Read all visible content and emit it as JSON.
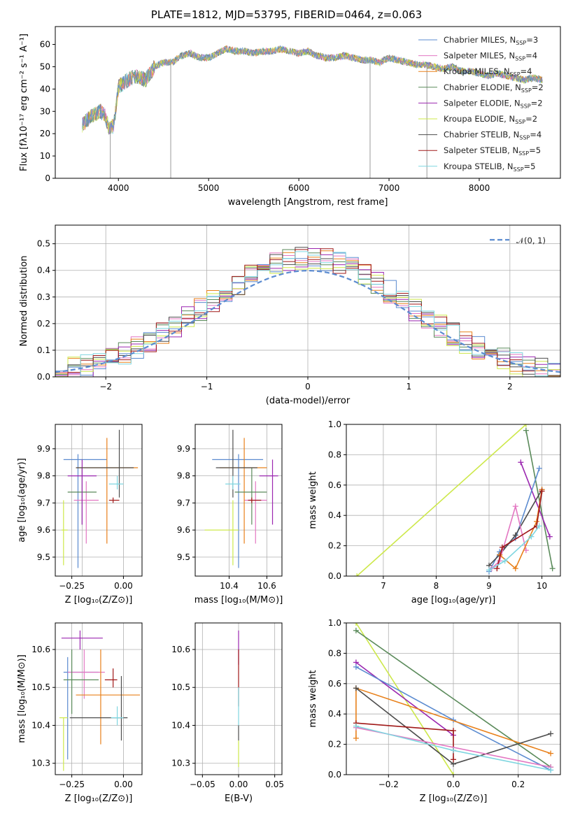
{
  "title": "PLATE=1812, MJD=53795, FIBERID=0464, z=0.063",
  "colors": {
    "chabrier_miles": "#5b8bd0",
    "salpeter_miles": "#e377c2",
    "kroupa_miles": "#e8801a",
    "chabrier_elodie": "#5a8a5a",
    "salpeter_elodie": "#9b27b0",
    "kroupa_elodie": "#cde84a",
    "chabrier_stelib": "#4d4d4d",
    "salpeter_stelib": "#a01818",
    "kroupa_stelib": "#7fd6e0",
    "gauss": "#5b8bd0",
    "grid": "#b0b0b0"
  },
  "chart_data": [
    {
      "type": "line",
      "xlabel": "wavelength [Angstrom, rest frame]",
      "ylabel": "Flux [fλ10⁻¹⁷ erg cm⁻² s⁻¹ A⁻¹]",
      "xlim": [
        3300,
        8900
      ],
      "ylim": [
        0,
        68
      ],
      "xticks": [
        "4000",
        "5000",
        "6000",
        "7000",
        "8000"
      ],
      "yticks": [
        "0",
        "10",
        "20",
        "30",
        "40",
        "50",
        "60"
      ],
      "grid": false,
      "legend_position": "top-right",
      "legend": [
        "Chabrier MILES, N_SSP=3",
        "Salpeter MILES, N_SSP=4",
        "Kroupa MILES, N_SSP=4",
        "Chabrier ELODIE, N_SSP=2",
        "Salpeter ELODIE, N_SSP=2",
        "Kroupa ELODIE, N_SSP=2",
        "Chabrier STELIB, N_SSP=4",
        "Salpeter STELIB, N_SSP=5",
        "Kroupa STELIB, N_SSP=5"
      ],
      "spectrum_envelope": {
        "x": [
          3600,
          3700,
          3800,
          3850,
          3900,
          3950,
          4000,
          4100,
          4200,
          4300,
          4400,
          4500,
          4600,
          4700,
          4800,
          4900,
          5000,
          5100,
          5200,
          5300,
          5400,
          5500,
          5600,
          5700,
          5800,
          5900,
          6000,
          6100,
          6200,
          6300,
          6400,
          6500,
          6600,
          6700,
          6800,
          6900,
          7000,
          7100,
          7200,
          7300,
          7400,
          7500,
          7600,
          7700,
          7800,
          7900,
          8000,
          8100,
          8200,
          8300,
          8400,
          8500,
          8600,
          8700
        ],
        "y": [
          24,
          28,
          30,
          28,
          22,
          24,
          41,
          44,
          46,
          44,
          50,
          52,
          52,
          55,
          56,
          54,
          54,
          56,
          58,
          57,
          57,
          56,
          57,
          57,
          58,
          57,
          56,
          57,
          55,
          54,
          54,
          55,
          54,
          53,
          53,
          52,
          54,
          53,
          52,
          51,
          51,
          50,
          49,
          50,
          48,
          48,
          47,
          46,
          47,
          46,
          45,
          44,
          45,
          44
        ]
      },
      "dips": [
        {
          "x": 3910,
          "y": 0
        },
        {
          "x": 4580,
          "y": 0
        },
        {
          "x": 6790,
          "y": 0
        },
        {
          "x": 7420,
          "y": 0
        }
      ]
    },
    {
      "type": "histogram",
      "xlabel": "(data-model)/error",
      "ylabel": "Normed distribution",
      "xlim": [
        -2.5,
        2.5
      ],
      "ylim": [
        0,
        0.57
      ],
      "xticks": [
        "−2",
        "−1",
        "0",
        "1",
        "2"
      ],
      "yticks": [
        "0.0",
        "0.1",
        "0.2",
        "0.3",
        "0.4",
        "0.5"
      ],
      "grid": true,
      "legend_position": "top-right",
      "legend": [
        "𝒩(0, 1)"
      ]
    },
    {
      "type": "scatter",
      "xlabel": "Z [log₁₀(Z/Z⊙)]",
      "ylabel": "age  [log₁₀(age/yr)]",
      "xlim": [
        -0.33,
        0.09
      ],
      "ylim": [
        9.43,
        9.99
      ],
      "xticks": [
        "−0.25",
        "0.00"
      ],
      "xticks_minor": [
        "−0.2"
      ],
      "yticks": [
        "9.5",
        "9.6",
        "9.7",
        "9.8",
        "9.9"
      ],
      "grid": true,
      "points": [
        {
          "series": "chabrier_miles",
          "x": -0.22,
          "y": 9.86,
          "ex": [
            -0.29,
            -0.08
          ],
          "ey": [
            9.46,
            9.88
          ]
        },
        {
          "series": "salpeter_miles",
          "x": -0.18,
          "y": 9.71,
          "ex": [
            -0.24,
            -0.12
          ],
          "ey": [
            9.55,
            9.78
          ]
        },
        {
          "series": "kroupa_miles",
          "x": -0.08,
          "y": 9.83,
          "ex": [
            -0.23,
            0.07
          ],
          "ey": [
            9.55,
            9.94
          ]
        },
        {
          "series": "chabrier_elodie",
          "x": -0.2,
          "y": 9.74,
          "ex": [
            -0.27,
            -0.13
          ],
          "ey": [
            9.62,
            9.83
          ]
        },
        {
          "series": "salpeter_elodie",
          "x": -0.2,
          "y": 9.8,
          "ex": [
            -0.27,
            -0.13
          ],
          "ey": [
            9.62,
            9.86
          ]
        },
        {
          "series": "kroupa_elodie",
          "x": -0.29,
          "y": 9.6,
          "ex": [
            -0.3,
            -0.27
          ],
          "ey": [
            9.47,
            9.71
          ]
        },
        {
          "series": "chabrier_stelib",
          "x": -0.02,
          "y": 9.83,
          "ex": [
            -0.23,
            0.05
          ],
          "ey": [
            9.72,
            9.97
          ]
        },
        {
          "series": "salpeter_stelib",
          "x": -0.05,
          "y": 9.71,
          "ex": [
            -0.07,
            -0.02
          ],
          "ey": [
            9.7,
            9.72
          ]
        },
        {
          "series": "kroupa_stelib",
          "x": -0.03,
          "y": 9.77,
          "ex": [
            -0.07,
            0.0
          ],
          "ey": [
            9.75,
            9.8
          ]
        }
      ]
    },
    {
      "type": "scatter",
      "xlabel": "mass [log₁₀(M/M⊙)]",
      "ylabel": "",
      "xlim": [
        10.22,
        10.68
      ],
      "ylim": [
        9.43,
        9.99
      ],
      "xticks": [
        "10.4",
        "10.6"
      ],
      "yticks": [
        "9.5",
        "9.6",
        "9.7",
        "9.8",
        "9.9"
      ],
      "grid": true,
      "points": [
        {
          "series": "chabrier_miles",
          "x": 10.45,
          "y": 9.86,
          "ex": [
            10.31,
            10.58
          ],
          "ey": [
            9.46,
            9.88
          ]
        },
        {
          "series": "salpeter_miles",
          "x": 10.54,
          "y": 9.71,
          "ex": [
            10.48,
            10.6
          ],
          "ey": [
            9.55,
            9.78
          ]
        },
        {
          "series": "kroupa_miles",
          "x": 10.48,
          "y": 9.83,
          "ex": [
            10.35,
            10.6
          ],
          "ey": [
            9.55,
            9.94
          ]
        },
        {
          "series": "chabrier_elodie",
          "x": 10.52,
          "y": 9.74,
          "ex": [
            10.43,
            10.6
          ],
          "ey": [
            9.62,
            9.83
          ]
        },
        {
          "series": "salpeter_elodie",
          "x": 10.63,
          "y": 9.8,
          "ex": [
            10.56,
            10.66
          ],
          "ey": [
            9.62,
            9.86
          ]
        },
        {
          "series": "kroupa_elodie",
          "x": 10.42,
          "y": 9.6,
          "ex": [
            10.27,
            10.45
          ],
          "ey": [
            9.47,
            9.71
          ]
        },
        {
          "series": "chabrier_stelib",
          "x": 10.42,
          "y": 9.83,
          "ex": [
            10.33,
            10.55
          ],
          "ey": [
            9.72,
            9.97
          ]
        },
        {
          "series": "salpeter_stelib",
          "x": 10.52,
          "y": 9.71,
          "ex": [
            10.5,
            10.57
          ],
          "ey": [
            9.7,
            9.72
          ]
        },
        {
          "series": "kroupa_stelib",
          "x": 10.42,
          "y": 9.77,
          "ex": [
            10.38,
            10.46
          ],
          "ey": [
            9.75,
            9.8
          ]
        }
      ]
    },
    {
      "type": "line",
      "xlabel": "age  [log₁₀(age/yr)]",
      "ylabel": "mass weight",
      "xlim": [
        6.3,
        10.35
      ],
      "ylim": [
        0,
        1.0
      ],
      "xticks": [
        "7",
        "8",
        "9",
        "10"
      ],
      "yticks": [
        "0.0",
        "0.2",
        "0.4",
        "0.6",
        "0.8",
        "1.0"
      ],
      "grid": true,
      "series": [
        {
          "name": "kroupa_elodie",
          "x": [
            6.5,
            9.7
          ],
          "y": [
            0.0,
            1.0
          ]
        },
        {
          "name": "chabrier_elodie",
          "x": [
            9.7,
            10.2
          ],
          "y": [
            0.96,
            0.05
          ]
        },
        {
          "name": "salpeter_elodie",
          "x": [
            9.6,
            10.15
          ],
          "y": [
            0.75,
            0.26
          ]
        },
        {
          "name": "chabrier_miles",
          "x": [
            9.0,
            9.2,
            9.5,
            9.95
          ],
          "y": [
            0.03,
            0.16,
            0.25,
            0.71
          ]
        },
        {
          "name": "chabrier_stelib",
          "x": [
            9.0,
            9.2,
            9.5,
            10.0
          ],
          "y": [
            0.07,
            0.14,
            0.27,
            0.57
          ]
        },
        {
          "name": "salpeter_miles",
          "x": [
            9.05,
            9.2,
            9.5,
            9.7
          ],
          "y": [
            0.05,
            0.1,
            0.46,
            0.17
          ]
        },
        {
          "name": "kroupa_miles",
          "x": [
            9.2,
            9.5,
            9.9,
            10.0
          ],
          "y": [
            0.14,
            0.05,
            0.36,
            0.57
          ]
        },
        {
          "name": "salpeter_stelib",
          "x": [
            9.15,
            9.25,
            9.9,
            10.0
          ],
          "y": [
            0.05,
            0.19,
            0.33,
            0.56
          ]
        },
        {
          "name": "kroupa_stelib",
          "x": [
            9.0,
            9.3,
            9.8,
            9.95
          ],
          "y": [
            0.04,
            0.1,
            0.26,
            0.33
          ]
        }
      ]
    },
    {
      "type": "scatter",
      "xlabel": "Z [log₁₀(Z/Z⊙)]",
      "ylabel": "mass [log₁₀(M/M⊙)]",
      "xlim": [
        -0.33,
        0.09
      ],
      "ylim": [
        10.27,
        10.67
      ],
      "xticks": [
        "−0.25",
        "0.00"
      ],
      "xticks_minor": [
        "−0.2"
      ],
      "yticks": [
        "10.3",
        "10.4",
        "10.5",
        "10.6"
      ],
      "grid": true,
      "points": [
        {
          "series": "chabrier_miles",
          "x": -0.27,
          "y": 10.54,
          "ex": [
            -0.29,
            -0.12
          ],
          "ey": [
            10.31,
            10.58
          ]
        },
        {
          "series": "salpeter_miles",
          "x": -0.19,
          "y": 10.54,
          "ex": [
            -0.27,
            -0.09
          ],
          "ey": [
            10.47,
            10.6
          ]
        },
        {
          "series": "kroupa_miles",
          "x": -0.11,
          "y": 10.48,
          "ex": [
            -0.23,
            0.08
          ],
          "ey": [
            10.35,
            10.6
          ]
        },
        {
          "series": "chabrier_elodie",
          "x": -0.25,
          "y": 10.52,
          "ex": [
            -0.29,
            -0.12
          ],
          "ey": [
            10.43,
            10.6
          ]
        },
        {
          "series": "salpeter_elodie",
          "x": -0.21,
          "y": 10.63,
          "ex": [
            -0.3,
            -0.1
          ],
          "ey": [
            10.6,
            10.65
          ]
        },
        {
          "series": "kroupa_elodie",
          "x": -0.29,
          "y": 10.42,
          "ex": [
            -0.31,
            -0.27
          ],
          "ey": [
            10.28,
            10.42
          ]
        },
        {
          "series": "chabrier_stelib",
          "x": -0.01,
          "y": 10.42,
          "ex": [
            -0.26,
            0.02
          ],
          "ey": [
            10.36,
            10.53
          ]
        },
        {
          "series": "salpeter_stelib",
          "x": -0.05,
          "y": 10.52,
          "ex": [
            -0.09,
            -0.03
          ],
          "ey": [
            10.5,
            10.55
          ]
        },
        {
          "series": "kroupa_stelib",
          "x": -0.03,
          "y": 10.42,
          "ex": [
            -0.06,
            0.0
          ],
          "ey": [
            10.4,
            10.45
          ]
        }
      ]
    },
    {
      "type": "scatter",
      "xlabel": "E(B-V)",
      "ylabel": "",
      "xlim": [
        -0.06,
        0.06
      ],
      "ylim": [
        10.27,
        10.67
      ],
      "xticks": [
        "−0.05",
        "0.00",
        "0.05"
      ],
      "yticks": [
        "10.3",
        "10.4",
        "10.5",
        "10.6"
      ],
      "grid": true,
      "points": [
        {
          "series": "salpeter_elodie",
          "x": 0.0,
          "y": 10.6,
          "ey": [
            10.56,
            10.65
          ]
        },
        {
          "series": "salpeter_stelib",
          "x": 0.0,
          "y": 10.52,
          "ey": [
            10.45,
            10.6
          ]
        },
        {
          "series": "chabrier_stelib",
          "x": 0.0,
          "y": 10.38,
          "ey": [
            10.36,
            10.4
          ]
        },
        {
          "series": "kroupa_stelib",
          "x": 0.0,
          "y": 10.45,
          "ey": [
            10.4,
            10.5
          ]
        },
        {
          "series": "kroupa_elodie",
          "x": 0.0,
          "y": 10.32,
          "ey": [
            10.29,
            10.36
          ]
        }
      ]
    },
    {
      "type": "line",
      "xlabel": "Z [log₁₀(Z/Z⊙)]",
      "ylabel": "mass weight",
      "xlim": [
        -0.33,
        0.33
      ],
      "ylim": [
        0,
        1.0
      ],
      "xticks": [
        "−0.2",
        "0.0",
        "0.2"
      ],
      "yticks": [
        "0.0",
        "0.2",
        "0.4",
        "0.6",
        "0.8",
        "1.0"
      ],
      "grid": true,
      "series": [
        {
          "name": "kroupa_elodie",
          "x": [
            -0.3,
            0.0
          ],
          "y": [
            1.0,
            0.0
          ]
        },
        {
          "name": "chabrier_elodie",
          "x": [
            -0.3,
            0.3
          ],
          "y": [
            0.95,
            0.05
          ]
        },
        {
          "name": "salpeter_elodie",
          "x": [
            -0.3,
            0.0
          ],
          "y": [
            0.74,
            0.26
          ]
        },
        {
          "name": "chabrier_miles",
          "x": [
            -0.3,
            0.0,
            0.3
          ],
          "y": [
            0.71,
            0.36,
            0.03
          ]
        },
        {
          "name": "kroupa_miles",
          "x": [
            -0.3,
            -0.3,
            0.3
          ],
          "y": [
            0.24,
            0.57,
            0.14
          ]
        },
        {
          "name": "chabrier_stelib",
          "x": [
            -0.3,
            0.0,
            0.3
          ],
          "y": [
            0.57,
            0.07,
            0.27
          ]
        },
        {
          "name": "salpeter_stelib",
          "x": [
            -0.3,
            0.0,
            0.0
          ],
          "y": [
            0.34,
            0.29,
            0.1
          ]
        },
        {
          "name": "salpeter_miles",
          "x": [
            -0.3,
            0.3
          ],
          "y": [
            0.31,
            0.05
          ]
        },
        {
          "name": "kroupa_stelib",
          "x": [
            -0.3,
            0.0,
            0.3
          ],
          "y": [
            0.32,
            0.16,
            0.03
          ]
        }
      ]
    }
  ]
}
